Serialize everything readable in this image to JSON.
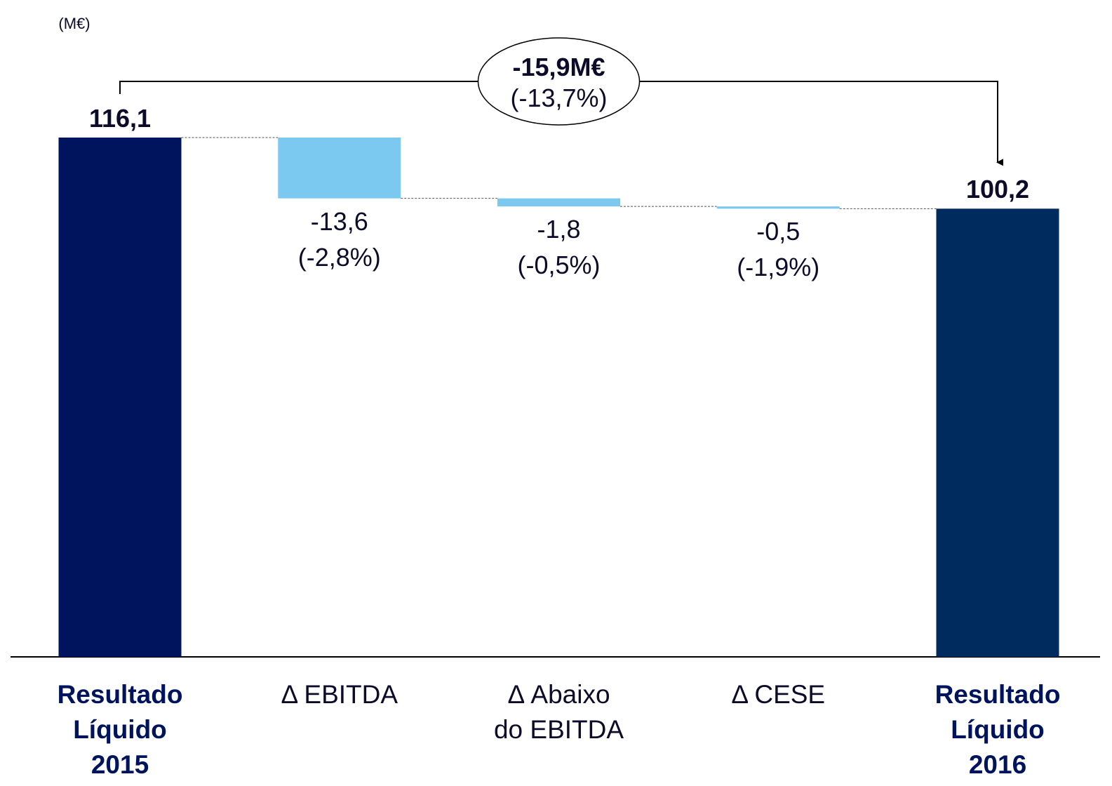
{
  "chart_data": {
    "type": "waterfall",
    "unit_label": "(M€)",
    "categories": [
      "Resultado\nLíquido\n2015",
      "Δ EBITDA",
      "Δ Abaixo\ndo EBITDA",
      "Δ CESE",
      "Resultado\nLíquido\n2016"
    ],
    "measure": [
      "absolute",
      "relative",
      "relative",
      "relative",
      "total"
    ],
    "values": [
      116.1,
      -13.6,
      -1.8,
      -0.5,
      100.2
    ],
    "value_labels": [
      "116,1",
      "-13,6",
      "-1,8",
      "-0,5",
      "100,2"
    ],
    "change_labels": [
      null,
      "(-2,8%)",
      "(-0,5%)",
      "(-1,9%)",
      null
    ],
    "colors": [
      "#00145e",
      "#7bc8f0",
      "#7bc8f0",
      "#7bc8f0",
      "#002b5e"
    ],
    "total_change": {
      "text": "-15,9M€",
      "sub": "(-13,7%)"
    }
  }
}
